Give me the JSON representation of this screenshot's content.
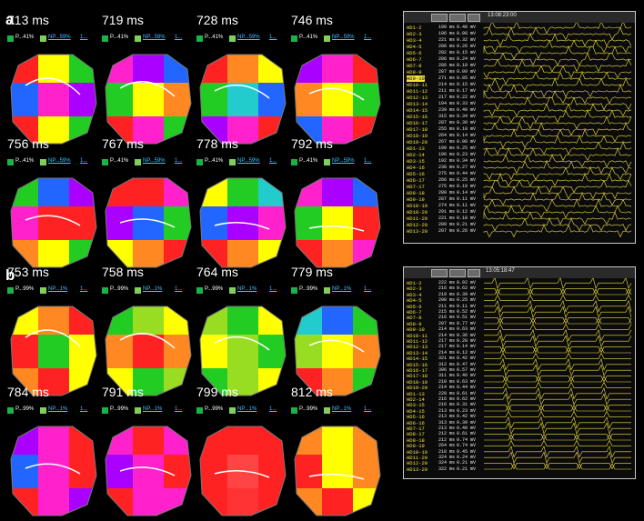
{
  "panels": [
    {
      "label": "a"
    },
    {
      "label": "b"
    }
  ],
  "panel_a": {
    "maps": [
      {
        "time": "713 ms",
        "p": "P...41%",
        "np": "NP...59%",
        "extra": "1..."
      },
      {
        "time": "719 ms",
        "p": "P...41%",
        "np": "NP...59%",
        "extra": "1..."
      },
      {
        "time": "728 ms",
        "p": "P...41%",
        "np": "NP...59%",
        "extra": "1..."
      },
      {
        "time": "746 ms",
        "p": "P...41%",
        "np": "NP...59%",
        "extra": "1..."
      },
      {
        "time": "756 ms",
        "p": "P...41%",
        "np": "NP...59%",
        "extra": "1..."
      },
      {
        "time": "767 ms",
        "p": "P...41%",
        "np": "NP...59%",
        "extra": "1..."
      },
      {
        "time": "778 ms",
        "p": "P...41%",
        "np": "NP...59%",
        "extra": "1..."
      },
      {
        "time": "792 ms",
        "p": "P...41%",
        "np": "NP...59%",
        "extra": "1..."
      }
    ],
    "egm": {
      "time": "13:08:23:00",
      "channels": [
        {
          "name": "HD1-2",
          "cl": "199 ms",
          "amp": "0.40 mV"
        },
        {
          "name": "HD2-3",
          "cl": "196 ms",
          "amp": "0.08 mV"
        },
        {
          "name": "HD3-4",
          "cl": "221 ms",
          "amp": "0.32 mV"
        },
        {
          "name": "HD4-5",
          "cl": "208 ms",
          "amp": "0.26 mV"
        },
        {
          "name": "HD5-6",
          "cl": "282 ms",
          "amp": "0.15 mV"
        },
        {
          "name": "HD6-7",
          "cl": "206 ms",
          "amp": "0.24 mV"
        },
        {
          "name": "HD7-8",
          "cl": "286 ms",
          "amp": "0.10 mV"
        },
        {
          "name": "HD8-9",
          "cl": "287 ms",
          "amp": "0.09 mV"
        },
        {
          "name": "HD9-10",
          "cl": "271 ms",
          "amp": "0.05 mV",
          "highlight": true
        },
        {
          "name": "HD10-11",
          "cl": "214 ms",
          "amp": "0.15 mV"
        },
        {
          "name": "HD11-12",
          "cl": "211 ms",
          "amp": "0.17 mV"
        },
        {
          "name": "HD12-13",
          "cl": "217 ms",
          "amp": "0.22 mV"
        },
        {
          "name": "HD13-14",
          "cl": "194 ms",
          "amp": "0.33 mV"
        },
        {
          "name": "HD14-15",
          "cl": "239 ms",
          "amp": "0.40 mV"
        },
        {
          "name": "HD15-16",
          "cl": "315 ms",
          "amp": "0.34 mV"
        },
        {
          "name": "HD16-17",
          "cl": "287 ms",
          "amp": "0.39 mV"
        },
        {
          "name": "HD17-18",
          "cl": "255 ms",
          "amp": "0.18 mV"
        },
        {
          "name": "HD18-19",
          "cl": "264 ms",
          "amp": "0.14 mV"
        },
        {
          "name": "HD19-20",
          "cl": "267 ms",
          "amp": "0.08 mV"
        },
        {
          "name": "HD1-13",
          "cl": "199 ms",
          "amp": "0.25 mV"
        },
        {
          "name": "HD2-14",
          "cl": "196 ms",
          "amp": "0.23 mV"
        },
        {
          "name": "HD3-15",
          "cl": "192 ms",
          "amp": "0.34 mV"
        },
        {
          "name": "HD4-16",
          "cl": "238 ms",
          "amp": "0.27 mV"
        },
        {
          "name": "HD5-16",
          "cl": "275 ms",
          "amp": "0.44 mV"
        },
        {
          "name": "HD6-17",
          "cl": "266 ms",
          "amp": "0.25 mV"
        },
        {
          "name": "HD7-17",
          "cl": "275 ms",
          "amp": "0.19 mV"
        },
        {
          "name": "HD8-18",
          "cl": "280 ms",
          "amp": "0.14 mV"
        },
        {
          "name": "HD9-19",
          "cl": "287 ms",
          "amp": "0.11 mV"
        },
        {
          "name": "HD10-19",
          "cl": "274 ms",
          "amp": "0.11 mV"
        },
        {
          "name": "HD10-20",
          "cl": "291 ms",
          "amp": "0.12 mV"
        },
        {
          "name": "HD11-20",
          "cl": "221 ms",
          "amp": "0.18 mV"
        },
        {
          "name": "HD12-20",
          "cl": "209 ms",
          "amp": "0.21 mV"
        },
        {
          "name": "HD13-20",
          "cl": "207 ms",
          "amp": "0.26 mV"
        }
      ]
    }
  },
  "panel_b": {
    "maps": [
      {
        "time": "753 ms",
        "p": "P...99%",
        "np": "NP...1%",
        "extra": "1..."
      },
      {
        "time": "758 ms",
        "p": "P...99%",
        "np": "NP...1%",
        "extra": "1..."
      },
      {
        "time": "764 ms",
        "p": "P...99%",
        "np": "NP...1%",
        "extra": "1..."
      },
      {
        "time": "779 ms",
        "p": "P...99%",
        "np": "NP...1%",
        "extra": "1..."
      },
      {
        "time": "784 ms",
        "p": "P...99%",
        "np": "NP...1%",
        "extra": "1..."
      },
      {
        "time": "791 ms",
        "p": "P...99%",
        "np": "NP...1%",
        "extra": "1..."
      },
      {
        "time": "799 ms",
        "p": "P...99%",
        "np": "NP...1%",
        "extra": "1..."
      },
      {
        "time": "812 ms",
        "p": "P...99%",
        "np": "NP...1%",
        "extra": "1..."
      }
    ],
    "egm": {
      "time": "13:05:18:47",
      "channels": [
        {
          "name": "HD1-2",
          "cl": "222 ms",
          "amp": "0.92 mV"
        },
        {
          "name": "HD2-3",
          "cl": "216 ms",
          "amp": "0.62 mV"
        },
        {
          "name": "HD3-4",
          "cl": "219 ms",
          "amp": "0.39 mV"
        },
        {
          "name": "HD4-5",
          "cl": "208 ms",
          "amp": "0.25 mV"
        },
        {
          "name": "HD5-6",
          "cl": "211 ms",
          "amp": "0.11 mV"
        },
        {
          "name": "HD6-7",
          "cl": "215 ms",
          "amp": "0.52 mV"
        },
        {
          "name": "HD7-8",
          "cl": "216 ms",
          "amp": "0.51 mV"
        },
        {
          "name": "HD8-9",
          "cl": "207 ms",
          "amp": "0.77 mV"
        },
        {
          "name": "HD9-10",
          "cl": "214 ms",
          "amp": "0.63 mV"
        },
        {
          "name": "HD10-11",
          "cl": "214 ms",
          "amp": "0.36 mV"
        },
        {
          "name": "HD11-12",
          "cl": "217 ms",
          "amp": "0.28 mV"
        },
        {
          "name": "HD12-13",
          "cl": "217 ms",
          "amp": "0.14 mV"
        },
        {
          "name": "HD13-14",
          "cl": "214 ms",
          "amp": "0.12 mV"
        },
        {
          "name": "HD14-15",
          "cl": "321 ms",
          "amp": "0.42 mV"
        },
        {
          "name": "HD15-16",
          "cl": "312 ms",
          "amp": "0.47 mV"
        },
        {
          "name": "HD16-17",
          "cl": "396 ms",
          "amp": "0.57 mV"
        },
        {
          "name": "HD17-18",
          "cl": "311 ms",
          "amp": "0.46 mV"
        },
        {
          "name": "HD18-19",
          "cl": "210 ms",
          "amp": "0.63 mV"
        },
        {
          "name": "HD19-20",
          "cl": "214 ms",
          "amp": "0.44 mV"
        },
        {
          "name": "HD1-13",
          "cl": "220 ms",
          "amp": "0.61 mV"
        },
        {
          "name": "HD2-14",
          "cl": "216 ms",
          "amp": "0.62 mV"
        },
        {
          "name": "HD3-15",
          "cl": "216 ms",
          "amp": "0.31 mV"
        },
        {
          "name": "HD4-15",
          "cl": "213 ms",
          "amp": "0.23 mV"
        },
        {
          "name": "HD5-16",
          "cl": "213 ms",
          "amp": "0.42 mV"
        },
        {
          "name": "HD6-16",
          "cl": "313 ms",
          "amp": "0.39 mV"
        },
        {
          "name": "HD7-17",
          "cl": "213 ms",
          "amp": "0.40 mV"
        },
        {
          "name": "HD8-17",
          "cl": "212 ms",
          "amp": "0.61 mV"
        },
        {
          "name": "HD8-18",
          "cl": "212 ms",
          "amp": "0.74 mV"
        },
        {
          "name": "HD9-19",
          "cl": "264 ms",
          "amp": "0.74 mV"
        },
        {
          "name": "HD10-19",
          "cl": "218 ms",
          "amp": "0.45 mV"
        },
        {
          "name": "HD11-20",
          "cl": "324 ms",
          "amp": "0.24 mV"
        },
        {
          "name": "HD12-20",
          "cl": "324 ms",
          "amp": "0.21 mV"
        },
        {
          "name": "HD13-20",
          "cl": "322 ms",
          "amp": "0.21 mV"
        }
      ]
    }
  },
  "colors": {
    "trace": "#f2e340",
    "label": "#f2e340",
    "window_border": "#c8c8c8"
  }
}
